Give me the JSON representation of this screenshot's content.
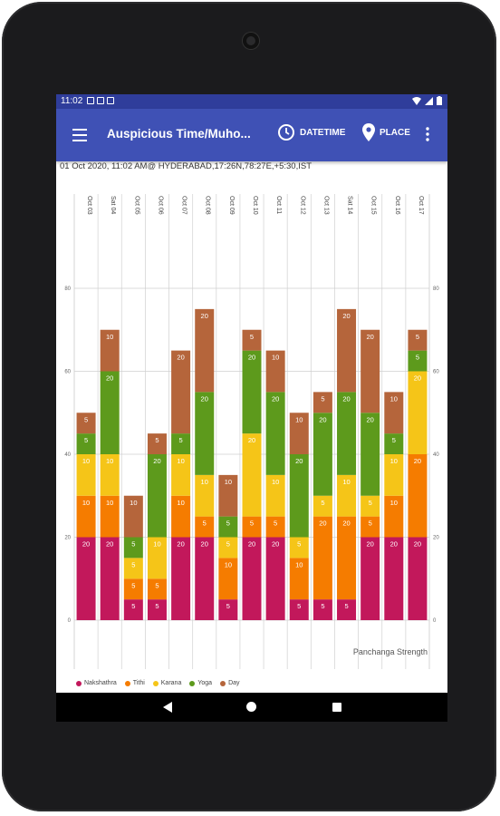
{
  "status_bar": {
    "time": "11:02"
  },
  "app_bar": {
    "title": "Auspicious Time/Muho...",
    "datetime_label": "DATETIME",
    "place_label": "PLACE"
  },
  "info_line": "01 Oct 2020, 11:02 AM@ HYDERABAD,17:26N,78:27E,+5:30,IST",
  "colors": {
    "status_bar": "#2f3d9b",
    "app_bar": "#3f51b5",
    "Nakshathra": "#c2185b",
    "Tithi": "#f57c00",
    "Karana": "#f5c518",
    "Yoga": "#5d9a1c",
    "Day": "#b5653b"
  },
  "chart_data": {
    "type": "bar",
    "stacked": true,
    "categories": [
      "Oct 03",
      "Sat 04",
      "Oct 05",
      "Oct 06",
      "Oct 07",
      "Oct 08",
      "Oct 09",
      "Oct 10",
      "Oct 11",
      "Oct 12",
      "Oct 13",
      "Sat 14",
      "Oct 15",
      "Oct 16",
      "Oct 17"
    ],
    "series": [
      {
        "name": "Nakshathra",
        "values": [
          20,
          20,
          5,
          5,
          20,
          20,
          5,
          20,
          20,
          5,
          5,
          5,
          20,
          20,
          20
        ]
      },
      {
        "name": "Tithi",
        "values": [
          10,
          10,
          5,
          5,
          10,
          5,
          10,
          5,
          5,
          10,
          20,
          20,
          5,
          10,
          20
        ]
      },
      {
        "name": "Karana",
        "values": [
          10,
          10,
          5,
          10,
          10,
          10,
          5,
          20,
          10,
          5,
          5,
          10,
          5,
          10,
          20
        ]
      },
      {
        "name": "Yoga",
        "values": [
          5,
          20,
          5,
          20,
          5,
          20,
          5,
          20,
          20,
          20,
          20,
          20,
          20,
          5,
          5
        ]
      },
      {
        "name": "Day",
        "values": [
          5,
          10,
          10,
          5,
          20,
          20,
          10,
          5,
          10,
          10,
          5,
          20,
          20,
          10,
          5
        ]
      }
    ],
    "ylim": [
      0,
      80
    ],
    "y_ticks": [
      0,
      20,
      40,
      60,
      80
    ],
    "annotation": "Panchanga Strength",
    "grid": true,
    "legend_position": "bottom-left"
  }
}
